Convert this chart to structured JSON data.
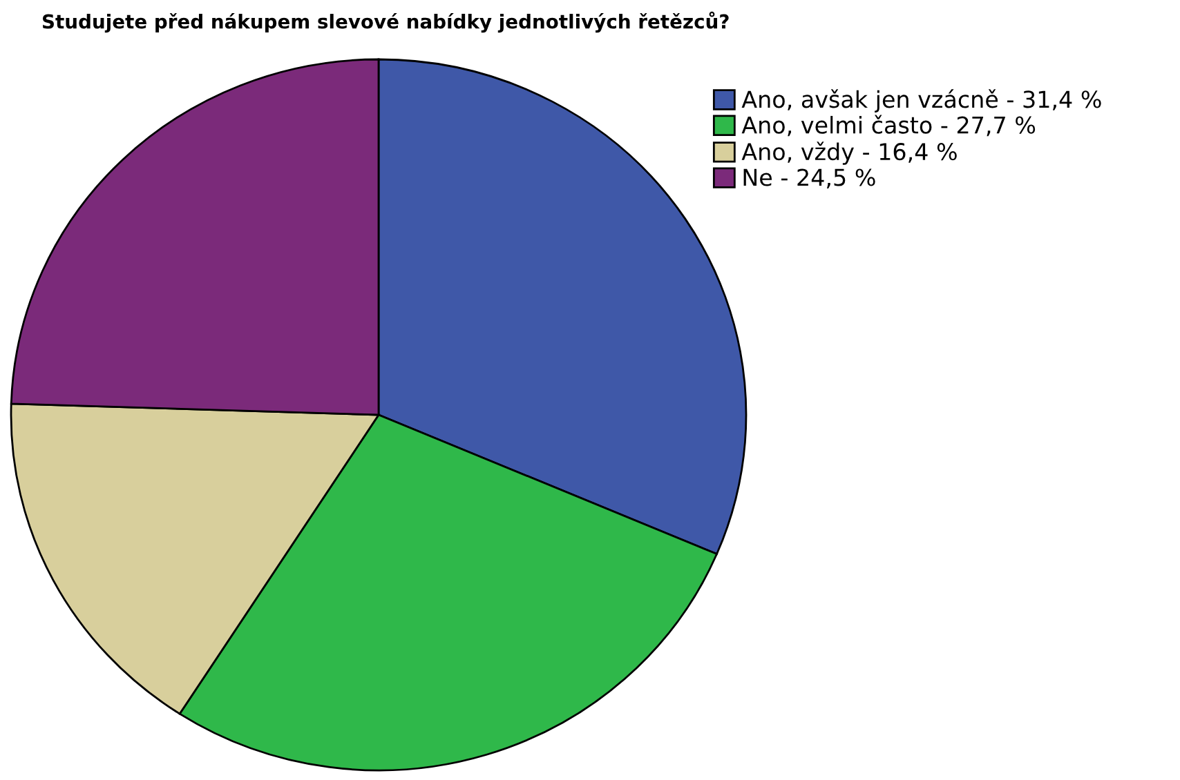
{
  "chart_data": {
    "type": "pie",
    "title": "Studujete před nákupem slevové nabídky jednotlivých řetězců?",
    "categories": [
      "Ano, avšak jen vzácně - 31,4 %",
      "Ano, velmi často - 27,7 %",
      "Ano, vždy - 16,4 %",
      "Ne - 24,5 %"
    ],
    "values": [
      31.4,
      27.7,
      16.4,
      24.5
    ],
    "colors": [
      "#3f58a8",
      "#2fb84a",
      "#d8cf9c",
      "#7b2a7a"
    ],
    "legend": "top right"
  }
}
